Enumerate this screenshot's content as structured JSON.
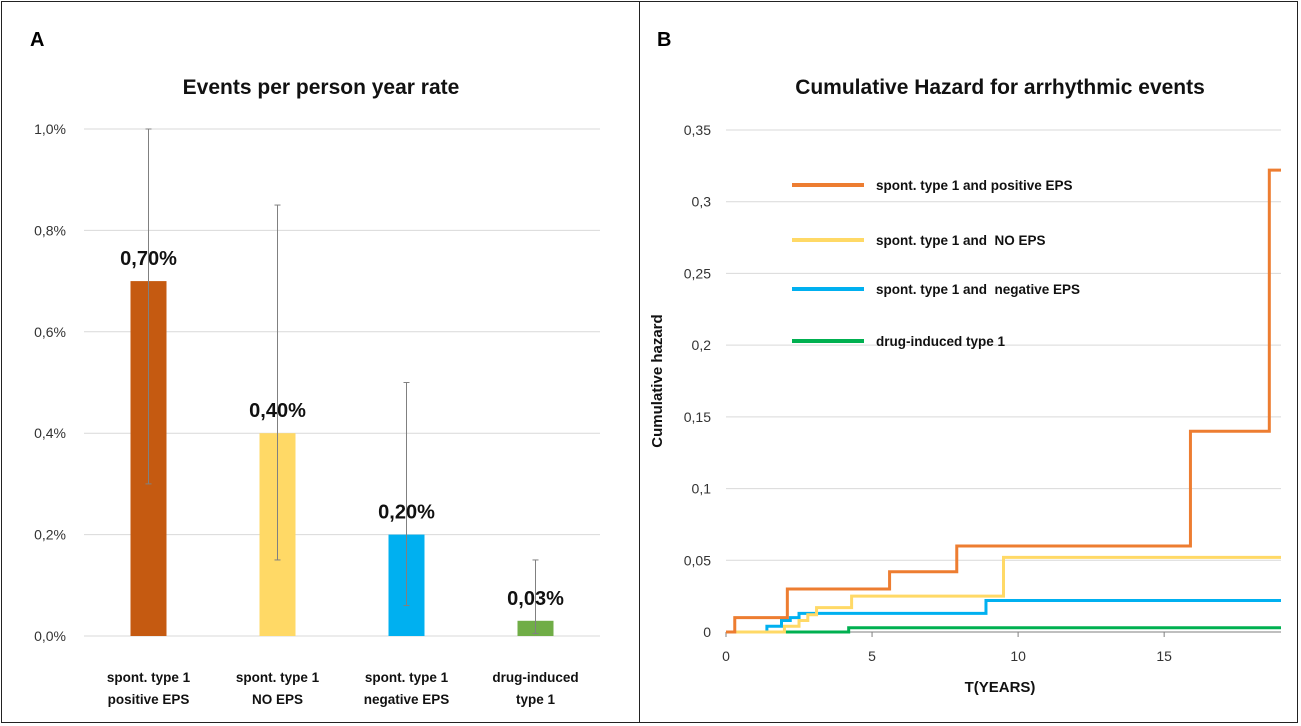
{
  "chart_data": [
    {
      "panel": "A",
      "type": "bar",
      "title": "Events per person year rate",
      "xlabel": "",
      "ylabel": "",
      "ylim": [
        0,
        1.0
      ],
      "y_ticks": [
        "0,0%",
        "0,2%",
        "0,4%",
        "0,6%",
        "0,8%",
        "1,0%"
      ],
      "y_tick_values": [
        0,
        0.2,
        0.4,
        0.6,
        0.8,
        1.0
      ],
      "grid": true,
      "categories": [
        [
          "spont. type 1",
          "positive EPS"
        ],
        [
          "spont. type 1",
          "NO EPS"
        ],
        [
          "spont. type 1",
          "negative EPS"
        ],
        [
          "drug-induced",
          "type 1"
        ]
      ],
      "values": [
        0.7,
        0.4,
        0.2,
        0.03
      ],
      "data_labels": [
        "0,70%",
        "0,40%",
        "0,20%",
        "0,03%"
      ],
      "error_low": [
        0.3,
        0.15,
        0.06,
        0.005
      ],
      "error_high": [
        1.0,
        0.85,
        0.5,
        0.15
      ],
      "colors": [
        "#c55a11",
        "#ffd966",
        "#00b0f0",
        "#70ad47"
      ]
    },
    {
      "panel": "B",
      "type": "line",
      "title": "Cumulative Hazard for arrhythmic events",
      "xlabel": "T(YEARS)",
      "ylabel": "Cumulative hazard",
      "xlim": [
        0,
        19
      ],
      "ylim": [
        0,
        0.35
      ],
      "x_ticks": [
        "0",
        "5",
        "10",
        "15"
      ],
      "x_tick_values": [
        0,
        5,
        10,
        15
      ],
      "y_ticks": [
        "0",
        "0,05",
        "0,1",
        "0,15",
        "0,2",
        "0,25",
        "0,3",
        "0,35"
      ],
      "y_tick_values": [
        0,
        0.05,
        0.1,
        0.15,
        0.2,
        0.25,
        0.3,
        0.35
      ],
      "grid": true,
      "legend_position": "top-left",
      "series": [
        {
          "name": "spont. type 1 and positive EPS",
          "color": "#ed7d31",
          "x": [
            0.3,
            2.1,
            5.6,
            7.9,
            15.9,
            18.6,
            19.0
          ],
          "y": [
            0.01,
            0.03,
            0.042,
            0.06,
            0.14,
            0.322,
            0.322
          ]
        },
        {
          "name": "spont. type 1 and  NO EPS",
          "color": "#ffd966",
          "x": [
            2.0,
            2.5,
            2.8,
            3.1,
            4.3,
            9.5,
            19.0
          ],
          "y": [
            0.004,
            0.008,
            0.012,
            0.017,
            0.025,
            0.052,
            0.052
          ]
        },
        {
          "name": "spont. type 1 and  negative EPS",
          "color": "#00b0f0",
          "x": [
            1.4,
            1.9,
            2.2,
            2.5,
            8.9,
            19.0
          ],
          "y": [
            0.004,
            0.008,
            0.01,
            0.013,
            0.022,
            0.022
          ]
        },
        {
          "name": "drug-induced type 1",
          "color": "#00b050",
          "x": [
            4.2,
            19.0
          ],
          "y": [
            0.003,
            0.003
          ]
        }
      ]
    }
  ],
  "panel_labels": [
    "A",
    "B"
  ]
}
